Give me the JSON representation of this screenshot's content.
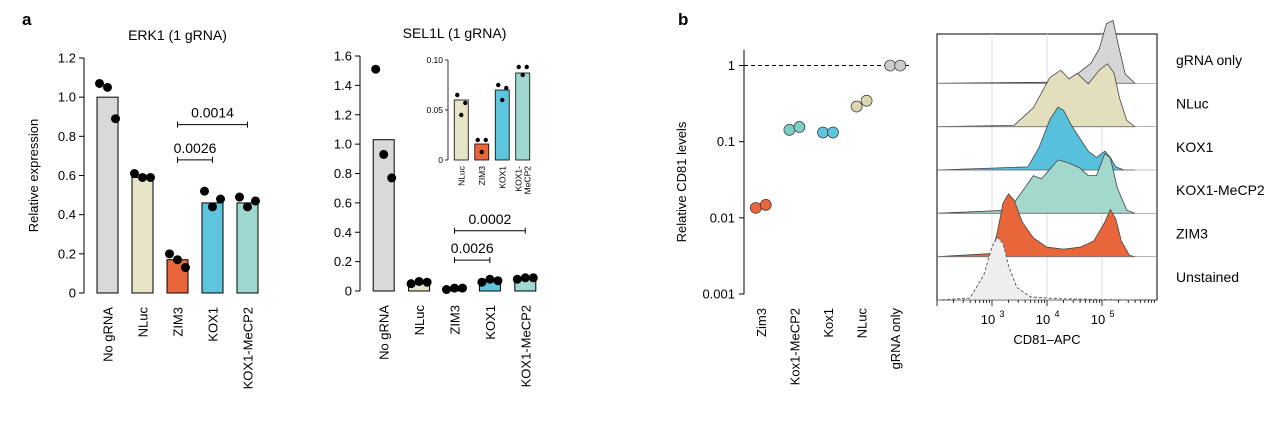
{
  "panels": {
    "a_letter": "a",
    "b_letter": "b"
  },
  "chart_data": [
    {
      "id": "erk1",
      "type": "bar",
      "title": "ERK1 (1 gRNA)",
      "ylabel": "Relative expression",
      "xlabel": "",
      "ylim": [
        0,
        1.2
      ],
      "yticks": [
        0,
        0.2,
        0.4,
        0.6,
        0.8,
        1.0,
        1.2
      ],
      "ytick_labels": [
        "0",
        "0.2",
        "0.4",
        "0.6",
        "0.8",
        "1.0",
        "1.2"
      ],
      "categories": [
        "No gRNA",
        "NLuc",
        "ZIM3",
        "KOX1",
        "KOX1-MeCP2"
      ],
      "values": [
        1.0,
        0.59,
        0.17,
        0.46,
        0.46
      ],
      "colors": [
        "#d9d9d9",
        "#e8e4c8",
        "#e8663a",
        "#5ec5df",
        "#9fd8d0"
      ],
      "replicates": [
        [
          1.07,
          1.05,
          0.89
        ],
        [
          0.61,
          0.59,
          0.59
        ],
        [
          0.2,
          0.17,
          0.13
        ],
        [
          0.52,
          0.44,
          0.48
        ],
        [
          0.49,
          0.44,
          0.47
        ]
      ],
      "brackets": [
        {
          "from": "ZIM3",
          "to": "KOX1",
          "label": "0.0026",
          "y": 0.68
        },
        {
          "from": "ZIM3",
          "to": "KOX1-MeCP2",
          "label": "0.0014",
          "y": 0.86
        }
      ]
    },
    {
      "id": "sel1l",
      "type": "bar",
      "title": "SEL1L (1 gRNA)",
      "ylabel": "",
      "xlabel": "",
      "ylim": [
        0,
        1.6
      ],
      "yticks": [
        0,
        0.2,
        0.4,
        0.6,
        0.8,
        1.0,
        1.2,
        1.4,
        1.6
      ],
      "ytick_labels": [
        "0",
        "0.2",
        "0.4",
        "0.6",
        "0.8",
        "1.0",
        "1.2",
        "1.4",
        "1.6"
      ],
      "categories": [
        "No gRNA",
        "NLuc",
        "ZIM3",
        "KOX1",
        "KOX1-MeCP2"
      ],
      "values": [
        1.03,
        0.06,
        0.02,
        0.07,
        0.09
      ],
      "colors": [
        "#d9d9d9",
        "#e8e4c8",
        "#e8663a",
        "#5ec5df",
        "#9fd8d0"
      ],
      "replicates": [
        [
          1.51,
          0.93,
          0.77
        ],
        [
          0.05,
          0.065,
          0.06
        ],
        [
          0.01,
          0.02,
          0.02
        ],
        [
          0.06,
          0.08,
          0.07
        ],
        [
          0.08,
          0.09,
          0.09
        ]
      ],
      "brackets": [
        {
          "from": "ZIM3",
          "to": "KOX1",
          "label": "0.0026",
          "y": 0.21
        },
        {
          "from": "ZIM3",
          "to": "KOX1-MeCP2",
          "label": "0.0002",
          "y": 0.41
        }
      ],
      "inset": {
        "type": "bar",
        "ylim": [
          0,
          0.1
        ],
        "yticks": [
          0,
          0.05,
          0.1
        ],
        "ytick_labels": [
          "0",
          "0.05",
          "0.10"
        ],
        "categories": [
          "NLuc",
          "ZIM3",
          "KOX1",
          "KOX1-\nMeCP2"
        ],
        "category_lines": [
          [
            "NLuc"
          ],
          [
            "ZIM3"
          ],
          [
            "KOX1"
          ],
          [
            "KOX1-",
            "MeCP2"
          ]
        ],
        "values": [
          0.06,
          0.016,
          0.07,
          0.087
        ],
        "colors": [
          "#e8e4c8",
          "#e8663a",
          "#5ec5df",
          "#9fd8d0"
        ],
        "replicates": [
          [
            0.065,
            0.057,
            0.045
          ],
          [
            0.02,
            0.02,
            0.008
          ],
          [
            0.075,
            0.072,
            0.06
          ],
          [
            0.093,
            0.093,
            0.085
          ]
        ]
      }
    },
    {
      "id": "cd81",
      "type": "scatter",
      "ylabel": "Relative CD81 levels",
      "xlabel": "",
      "yscale": "log",
      "ylim": [
        0.001,
        1.6
      ],
      "yticks": [
        0.001,
        0.01,
        0.1,
        1
      ],
      "ytick_labels": [
        "0.001",
        "0.01",
        "0.1",
        "1"
      ],
      "reference_line": 1,
      "categories": [
        "Zim3",
        "Kox1-MeCP2",
        "Kox1",
        "NLuc",
        "gRNA only"
      ],
      "colors": [
        "#e8663a",
        "#7ccfc4",
        "#5ec5df",
        "#dad6b0",
        "#cccccc"
      ],
      "replicates": [
        [
          0.0135,
          0.0148
        ],
        [
          0.143,
          0.156
        ],
        [
          0.132,
          0.132
        ],
        [
          0.29,
          0.345
        ],
        [
          1.0,
          1.0
        ]
      ]
    },
    {
      "id": "flow",
      "type": "area",
      "xlabel": "CD81–APC",
      "xscale": "log",
      "xlim": [
        100,
        1000000
      ],
      "xticks": [
        1000,
        10000,
        100000
      ],
      "xtick_labels": [
        "10",
        "10",
        "10"
      ],
      "xtick_exponents": [
        "3",
        "4",
        "5"
      ],
      "series": [
        {
          "name": "gRNA only",
          "color": "#d6d6d6",
          "dashed": false,
          "x": [
            2.0,
            4.3,
            4.55,
            4.8,
            4.95,
            5.08,
            5.2,
            5.3,
            5.42,
            5.6
          ],
          "y": [
            0,
            0.02,
            0.15,
            0.32,
            0.55,
            0.95,
            1.0,
            0.6,
            0.15,
            0
          ]
        },
        {
          "name": "NLuc",
          "color": "#e3dfbe",
          "dashed": false,
          "x": [
            2.0,
            3.4,
            3.75,
            4.05,
            4.25,
            4.4,
            4.55,
            4.75,
            4.95,
            5.1,
            5.22,
            5.32,
            5.45,
            5.6
          ],
          "y": [
            0,
            0.02,
            0.3,
            0.78,
            0.9,
            0.76,
            0.85,
            0.68,
            0.9,
            1.0,
            0.85,
            0.45,
            0.1,
            0
          ]
        },
        {
          "name": "KOX1",
          "color": "#57c0dc",
          "dashed": false,
          "x": [
            2.0,
            3.65,
            3.85,
            4.05,
            4.2,
            4.3,
            4.45,
            4.6,
            4.75,
            4.9,
            5.05,
            5.15,
            5.25,
            5.4,
            5.6
          ],
          "y": [
            0,
            0.05,
            0.35,
            0.8,
            1.0,
            0.95,
            0.7,
            0.5,
            0.3,
            0.2,
            0.3,
            0.2,
            0.05,
            0,
            0
          ]
        },
        {
          "name": "KOX1-MeCP2",
          "color": "#a3d8cc",
          "dashed": false,
          "x": [
            2.0,
            3.3,
            3.55,
            3.75,
            3.9,
            4.05,
            4.2,
            4.4,
            4.6,
            4.75,
            4.9,
            5.05,
            5.15,
            5.28,
            5.45,
            5.6
          ],
          "y": [
            0,
            0.05,
            0.35,
            0.6,
            0.55,
            0.7,
            0.85,
            0.8,
            0.72,
            0.6,
            0.6,
            0.95,
            0.88,
            0.4,
            0.05,
            0
          ]
        },
        {
          "name": "ZIM3",
          "color": "#e8663a",
          "dashed": false,
          "x": [
            2.0,
            3.0,
            3.1,
            3.2,
            3.3,
            3.4,
            3.55,
            3.75,
            4.0,
            4.3,
            4.6,
            4.85,
            5.05,
            5.15,
            5.25,
            5.35,
            5.5,
            5.6
          ],
          "y": [
            0,
            0.05,
            0.4,
            0.85,
            1.0,
            0.9,
            0.55,
            0.3,
            0.15,
            0.12,
            0.15,
            0.25,
            0.55,
            0.75,
            0.6,
            0.25,
            0.02,
            0
          ]
        },
        {
          "name": "Unstained",
          "color": "#eeeeee",
          "dashed": true,
          "x": [
            2.0,
            2.6,
            2.85,
            3.0,
            3.1,
            3.2,
            3.3,
            3.45,
            3.7,
            4.2,
            5.6
          ],
          "y": [
            0,
            0.03,
            0.4,
            0.85,
            1.0,
            0.9,
            0.55,
            0.2,
            0.05,
            0.02,
            0
          ]
        }
      ]
    }
  ]
}
